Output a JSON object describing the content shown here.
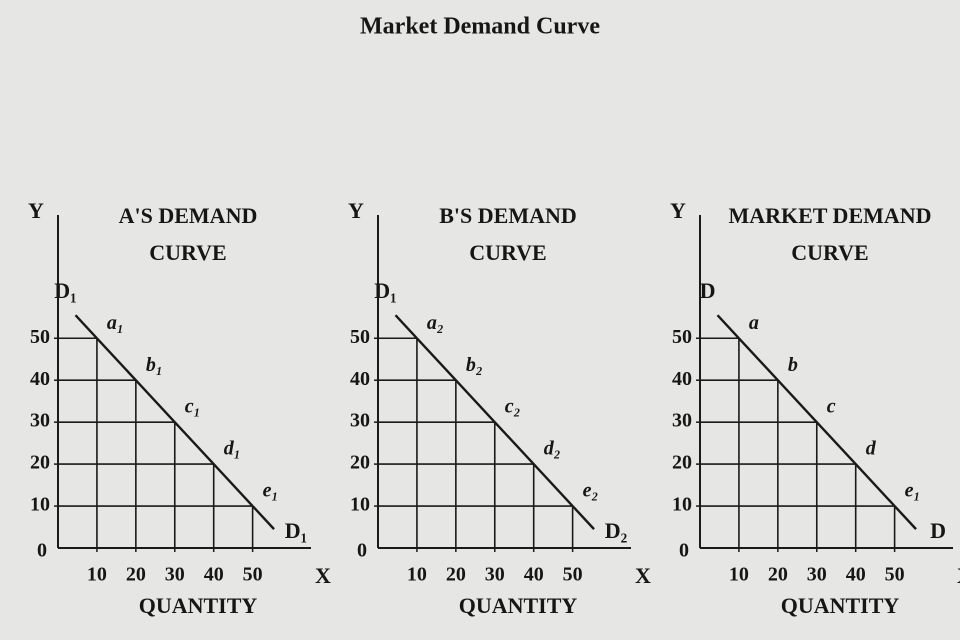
{
  "title": "Market Demand Curve",
  "chart_data": [
    {
      "type": "line",
      "title_lines": [
        "A'S DEMAND",
        "CURVE"
      ],
      "y_axis_label": "Y",
      "x_axis_label": "X",
      "xlabel": "QUANTITY",
      "origin_label": "0",
      "x": [
        10,
        20,
        30,
        40,
        50
      ],
      "values": [
        50,
        40,
        30,
        20,
        10
      ],
      "point_labels": [
        "a₁",
        "b₁",
        "c₁",
        "d₁",
        "e₁"
      ],
      "curve_labels": [
        "D₁",
        "D₁"
      ],
      "xlim": [
        0,
        65
      ],
      "ylim": [
        0,
        77
      ],
      "xticks": [
        10,
        20,
        30,
        40,
        50
      ],
      "yticks": [
        10,
        20,
        30,
        40,
        50
      ],
      "color": "#1a1a1a"
    },
    {
      "type": "line",
      "title_lines": [
        "B'S DEMAND",
        "CURVE"
      ],
      "y_axis_label": "Y",
      "x_axis_label": "X",
      "xlabel": "QUANTITY",
      "origin_label": "0",
      "x": [
        10,
        20,
        30,
        40,
        50
      ],
      "values": [
        50,
        40,
        30,
        20,
        10
      ],
      "point_labels": [
        "a₂",
        "b₂",
        "c₂",
        "d₂",
        "e₂"
      ],
      "curve_labels": [
        "D₁",
        "D₂"
      ],
      "xlim": [
        0,
        65
      ],
      "ylim": [
        0,
        77
      ],
      "xticks": [
        10,
        20,
        30,
        40,
        50
      ],
      "yticks": [
        10,
        20,
        30,
        40,
        50
      ],
      "color": "#1a1a1a"
    },
    {
      "type": "line",
      "title_lines": [
        "MARKET DEMAND",
        "CURVE"
      ],
      "y_axis_label": "Y",
      "x_axis_label": "X",
      "xlabel": "QUANTITY",
      "origin_label": "0",
      "x": [
        10,
        20,
        30,
        40,
        50
      ],
      "values": [
        50,
        40,
        30,
        20,
        10
      ],
      "point_labels": [
        "a",
        "b",
        "c",
        "d",
        "e₁"
      ],
      "curve_labels": [
        "D",
        "D"
      ],
      "xlim": [
        0,
        65
      ],
      "ylim": [
        0,
        77
      ],
      "xticks": [
        10,
        20,
        30,
        40,
        50
      ],
      "yticks": [
        10,
        20,
        30,
        40,
        50
      ],
      "color": "#1a1a1a"
    }
  ]
}
